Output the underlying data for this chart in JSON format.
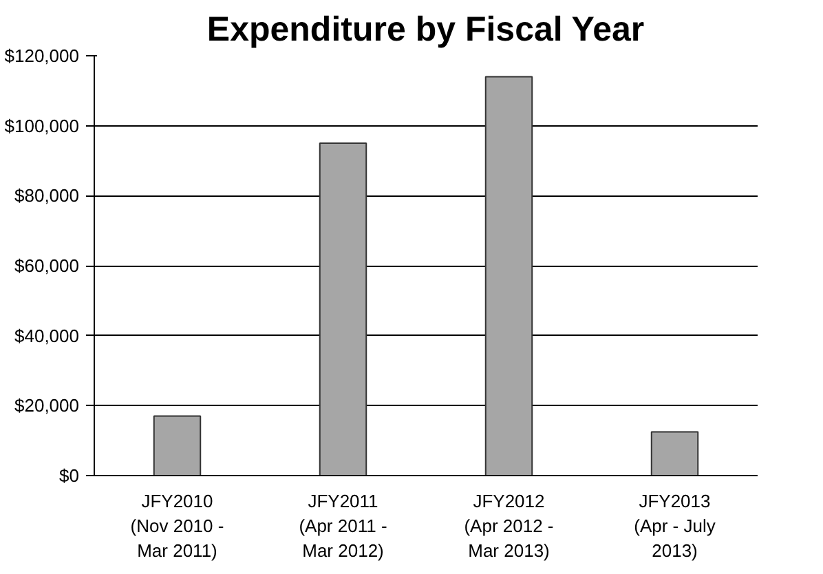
{
  "chart_data": {
    "type": "bar",
    "title": "Expenditure by Fiscal Year",
    "categories": [
      "JFY2010\n(Nov 2010 -\nMar 2011)",
      "JFY2011\n(Apr 2011 -\nMar 2012)",
      "JFY2012\n(Apr 2012 -\nMar 2013)",
      "JFY2013\n(Apr - July\n2013)"
    ],
    "values": [
      17000,
      95000,
      114000,
      12500
    ],
    "color": "#a6a6a6",
    "ylim": [
      0,
      120000
    ],
    "yticks": [
      {
        "value": 0,
        "label": "$0"
      },
      {
        "value": 20000,
        "label": "$20,000"
      },
      {
        "value": 40000,
        "label": "$40,000"
      },
      {
        "value": 60000,
        "label": "$60,000"
      },
      {
        "value": 80000,
        "label": "$80,000"
      },
      {
        "value": 100000,
        "label": "$100,000"
      },
      {
        "value": 120000,
        "label": "$120,000"
      }
    ],
    "grid": "y"
  }
}
